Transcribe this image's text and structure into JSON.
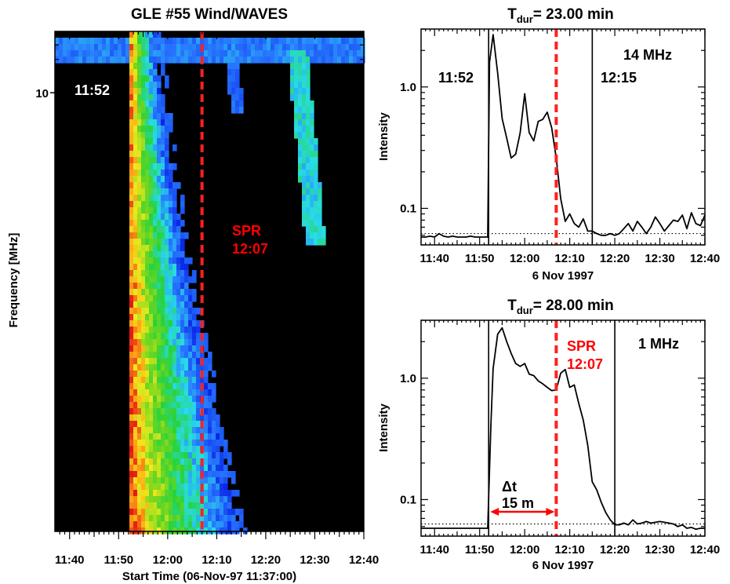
{
  "chart_data": [
    {
      "type": "heatmap",
      "title": "GLE #55 Wind/WAVES",
      "xlabel": "Start Time (06-Nov-97 11:37:00)",
      "ylabel": "Frequency [MHz]",
      "x_tick_labels": [
        "11:40",
        "11:50",
        "12:00",
        "12:10",
        "12:20",
        "12:30",
        "12:40"
      ],
      "x_tick_minutes": [
        40,
        50,
        60,
        70,
        80,
        90,
        100
      ],
      "xlim_minutes": [
        37,
        100
      ],
      "y_tick_labels": [
        "10"
      ],
      "y_tick_values": [
        10
      ],
      "ylim_mhz": [
        0.9,
        14
      ],
      "y_scale": "log",
      "annotations": [
        {
          "text": "11:52",
          "x_minutes": 52,
          "color": "#ffffff"
        },
        {
          "text": "SPR",
          "color": "#ff0000"
        },
        {
          "text": "12:07",
          "x_minutes": 67,
          "color": "#ff0000"
        }
      ],
      "spr_line_minutes": 67,
      "colors": {
        "background": "#000000",
        "spr": "#ff2020"
      }
    },
    {
      "type": "line",
      "title_main": "T",
      "title_sub": "dur",
      "title_rest": "= 23.00 min",
      "xlabel": "6 Nov 1997",
      "ylabel": "Intensity",
      "y_scale": "log",
      "ylim": [
        0.05,
        3.0
      ],
      "xlim_minutes": [
        37,
        100
      ],
      "x_tick_labels": [
        "11:40",
        "11:50",
        "12:00",
        "12:10",
        "12:20",
        "12:30",
        "12:40"
      ],
      "x_tick_minutes": [
        40,
        50,
        60,
        70,
        80,
        90,
        100
      ],
      "y_tick_labels": [
        "0.1",
        "1.0"
      ],
      "y_tick_values": [
        0.1,
        1.0
      ],
      "background_level": 0.062,
      "vlines_minutes": [
        52,
        75
      ],
      "spr_line_minutes": 67,
      "annotations": [
        {
          "text": "14 MHz"
        },
        {
          "text": "11:52"
        },
        {
          "text": "12:15"
        }
      ],
      "x": [
        37,
        38,
        39,
        40,
        41,
        42,
        43,
        44,
        45,
        46,
        47,
        48,
        49,
        50,
        51,
        51.8,
        52.2,
        53,
        54,
        55,
        56,
        57,
        58,
        59,
        60,
        61,
        62,
        63,
        64,
        65,
        66,
        67,
        68,
        69,
        70,
        71,
        72,
        73,
        74,
        75,
        76,
        77,
        78,
        79,
        80,
        81,
        82,
        83,
        84,
        85,
        86,
        87,
        88,
        89,
        90,
        91,
        92,
        93,
        94,
        95,
        96,
        97,
        98,
        99,
        100
      ],
      "values": [
        0.058,
        0.058,
        0.059,
        0.058,
        0.062,
        0.059,
        0.058,
        0.059,
        0.058,
        0.058,
        0.058,
        0.059,
        0.058,
        0.058,
        0.058,
        0.058,
        1.6,
        2.7,
        1.3,
        0.55,
        0.38,
        0.26,
        0.28,
        0.42,
        0.88,
        0.42,
        0.36,
        0.52,
        0.54,
        0.62,
        0.46,
        0.26,
        0.12,
        0.078,
        0.09,
        0.075,
        0.07,
        0.082,
        0.065,
        0.065,
        0.062,
        0.06,
        0.06,
        0.062,
        0.06,
        0.062,
        0.068,
        0.075,
        0.065,
        0.078,
        0.07,
        0.062,
        0.07,
        0.085,
        0.075,
        0.065,
        0.072,
        0.08,
        0.078,
        0.088,
        0.068,
        0.092,
        0.075,
        0.072,
        0.088
      ],
      "colors": {
        "line": "#000000",
        "spr": "#ff2020"
      }
    },
    {
      "type": "line",
      "title_main": "T",
      "title_sub": "dur",
      "title_rest": "= 28.00 min",
      "xlabel": "6 Nov 1997",
      "ylabel": "Intensity",
      "y_scale": "log",
      "ylim": [
        0.05,
        3.0
      ],
      "xlim_minutes": [
        37,
        100
      ],
      "x_tick_labels": [
        "11:40",
        "11:50",
        "12:00",
        "12:10",
        "12:20",
        "12:30",
        "12:40"
      ],
      "x_tick_minutes": [
        40,
        50,
        60,
        70,
        80,
        90,
        100
      ],
      "y_tick_labels": [
        "0.1",
        "1.0"
      ],
      "y_tick_values": [
        0.1,
        1.0
      ],
      "background_level": 0.063,
      "vlines_minutes": [
        52,
        80
      ],
      "spr_line_minutes": 67,
      "annotations": [
        {
          "text": "1 MHz"
        },
        {
          "text": "SPR",
          "color": "#ff0000"
        },
        {
          "text": "12:07",
          "color": "#ff0000"
        },
        {
          "text": "Δt"
        },
        {
          "text": "15 m"
        }
      ],
      "delta_arrow_minutes": [
        52,
        67
      ],
      "x": [
        37,
        38,
        39,
        40,
        41,
        42,
        43,
        44,
        45,
        46,
        47,
        48,
        49,
        50,
        51,
        51.8,
        52.5,
        53,
        54,
        55,
        56,
        57,
        58,
        59,
        60,
        61,
        62,
        63,
        64,
        65,
        66,
        67,
        68,
        69,
        70,
        71,
        72,
        73,
        74,
        75,
        76,
        77,
        78,
        79,
        80,
        81,
        82,
        83,
        84,
        85,
        86,
        87,
        88,
        89,
        90,
        91,
        92,
        93,
        94,
        95,
        96,
        97,
        98,
        99,
        100
      ],
      "values": [
        0.058,
        0.058,
        0.058,
        0.058,
        0.058,
        0.058,
        0.058,
        0.058,
        0.058,
        0.058,
        0.058,
        0.058,
        0.058,
        0.058,
        0.058,
        0.058,
        0.42,
        1.2,
        2.3,
        2.6,
        2.0,
        1.6,
        1.32,
        1.25,
        1.32,
        1.08,
        1.05,
        0.95,
        0.9,
        0.84,
        0.79,
        0.8,
        1.1,
        1.18,
        0.84,
        0.88,
        0.62,
        0.45,
        0.28,
        0.14,
        0.12,
        0.095,
        0.078,
        0.068,
        0.062,
        0.062,
        0.064,
        0.062,
        0.068,
        0.063,
        0.064,
        0.066,
        0.064,
        0.065,
        0.066,
        0.065,
        0.064,
        0.063,
        0.06,
        0.062,
        0.058,
        0.059,
        0.057,
        0.058,
        0.058
      ],
      "colors": {
        "line": "#000000",
        "spr": "#ff2020",
        "arrow": "#ff0000"
      }
    }
  ]
}
